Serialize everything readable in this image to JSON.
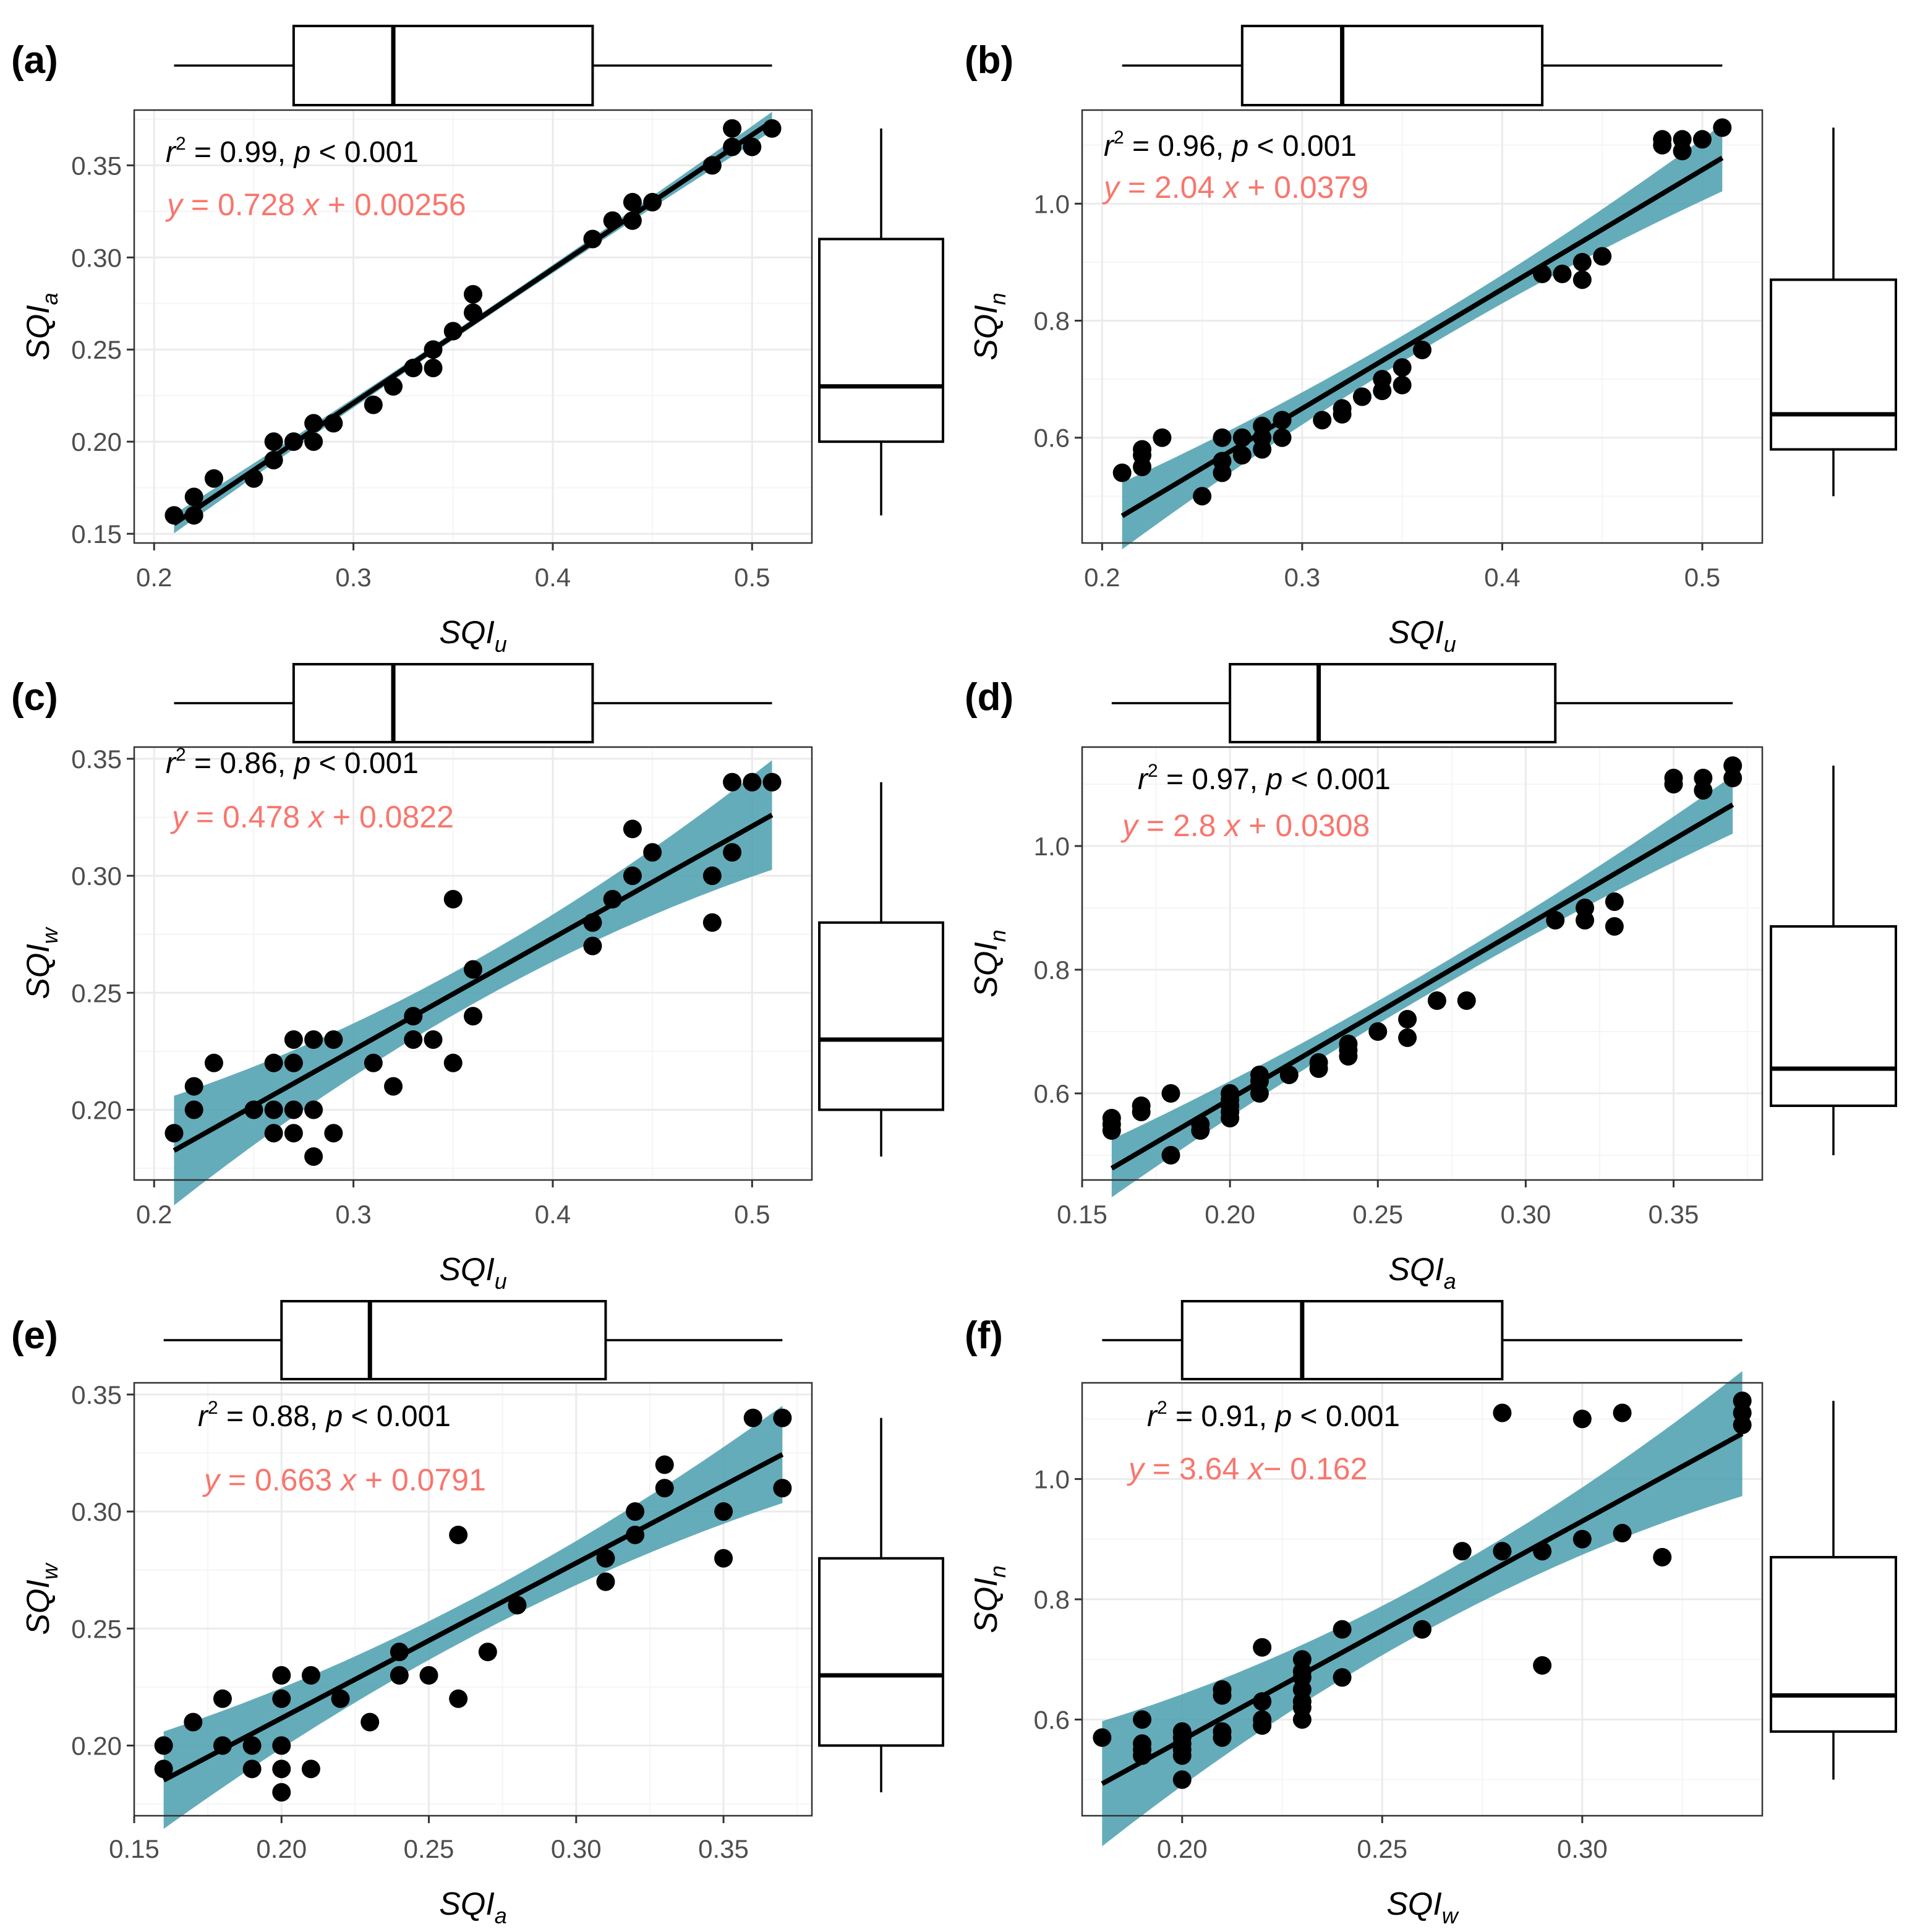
{
  "colors": {
    "points": "#000000",
    "fit_line": "#000000",
    "ci_band": "#4A9DAE",
    "equation": "#F8766D",
    "grid_major": "#EBEBEB",
    "grid_minor": "#F5F5F5",
    "tick_text": "#4D4D4D"
  },
  "chart_data": [
    {
      "type": "scatter",
      "panel_label": "(a)",
      "xlabel": {
        "main": "SQI",
        "sub": "u"
      },
      "ylabel": {
        "main": "SQI",
        "sub": "a"
      },
      "xlim": [
        0.19,
        0.53
      ],
      "ylim": [
        0.145,
        0.38
      ],
      "xticks": [
        0.2,
        0.3,
        0.4,
        0.5
      ],
      "xtick_labels": [
        "0.2",
        "0.3",
        "0.4",
        "0.5"
      ],
      "yticks": [
        0.15,
        0.2,
        0.25,
        0.3,
        0.35
      ],
      "ytick_labels": [
        "0.15",
        "0.20",
        "0.25",
        "0.30",
        "0.35"
      ],
      "stat_text": {
        "r": "r",
        "r2_rest": " = 0.99, ",
        "p": "p",
        "p_rest": " < 0.001"
      },
      "equation": {
        "y": "y",
        "mid": " = 0.728 ",
        "x": "x",
        "rest": " + 0.00256"
      },
      "fit": {
        "slope": 0.728,
        "intercept": 0.00256,
        "x_range": [
          0.21,
          0.51
        ],
        "ci": 0.002
      },
      "box_x": {
        "min": 0.21,
        "q1": 0.27,
        "median": 0.32,
        "q3": 0.42,
        "max": 0.51
      },
      "box_y": {
        "min": 0.16,
        "q1": 0.2,
        "median": 0.23,
        "q3": 0.31,
        "max": 0.37
      },
      "points": [
        [
          0.21,
          0.16
        ],
        [
          0.22,
          0.16
        ],
        [
          0.22,
          0.17
        ],
        [
          0.23,
          0.18
        ],
        [
          0.25,
          0.18
        ],
        [
          0.26,
          0.19
        ],
        [
          0.26,
          0.2
        ],
        [
          0.27,
          0.2
        ],
        [
          0.28,
          0.2
        ],
        [
          0.28,
          0.21
        ],
        [
          0.29,
          0.21
        ],
        [
          0.31,
          0.22
        ],
        [
          0.32,
          0.23
        ],
        [
          0.33,
          0.24
        ],
        [
          0.34,
          0.24
        ],
        [
          0.34,
          0.25
        ],
        [
          0.35,
          0.26
        ],
        [
          0.36,
          0.27
        ],
        [
          0.36,
          0.28
        ],
        [
          0.42,
          0.31
        ],
        [
          0.43,
          0.32
        ],
        [
          0.44,
          0.32
        ],
        [
          0.44,
          0.33
        ],
        [
          0.45,
          0.33
        ],
        [
          0.48,
          0.35
        ],
        [
          0.49,
          0.36
        ],
        [
          0.49,
          0.37
        ],
        [
          0.5,
          0.36
        ],
        [
          0.51,
          0.37
        ]
      ]
    },
    {
      "type": "scatter",
      "panel_label": "(b)",
      "xlabel": {
        "main": "SQI",
        "sub": "u"
      },
      "ylabel": {
        "main": "SQI",
        "sub": "n"
      },
      "xlim": [
        0.19,
        0.53
      ],
      "ylim": [
        0.42,
        1.16
      ],
      "xticks": [
        0.2,
        0.3,
        0.4,
        0.5
      ],
      "xtick_labels": [
        "0.2",
        "0.3",
        "0.4",
        "0.5"
      ],
      "yticks": [
        0.6,
        0.8,
        1.0
      ],
      "ytick_labels": [
        "0.6",
        "0.8",
        "1.0"
      ],
      "stat_text": {
        "r": "r",
        "r2_rest": " = 0.96, ",
        "p": "p",
        "p_rest": " < 0.001"
      },
      "equation": {
        "y": "y",
        "mid": " = 2.04 ",
        "x": "x",
        "rest": " + 0.0379"
      },
      "fit": {
        "slope": 2.04,
        "intercept": 0.0379,
        "x_range": [
          0.21,
          0.51
        ],
        "ci": 0.022
      },
      "box_x": {
        "min": 0.21,
        "q1": 0.27,
        "median": 0.32,
        "q3": 0.42,
        "max": 0.51
      },
      "box_y": {
        "min": 0.5,
        "q1": 0.58,
        "median": 0.64,
        "q3": 0.87,
        "max": 1.13
      },
      "points": [
        [
          0.21,
          0.54
        ],
        [
          0.22,
          0.55
        ],
        [
          0.22,
          0.57
        ],
        [
          0.22,
          0.58
        ],
        [
          0.23,
          0.6
        ],
        [
          0.25,
          0.5
        ],
        [
          0.26,
          0.54
        ],
        [
          0.26,
          0.56
        ],
        [
          0.26,
          0.6
        ],
        [
          0.27,
          0.57
        ],
        [
          0.27,
          0.6
        ],
        [
          0.28,
          0.58
        ],
        [
          0.28,
          0.6
        ],
        [
          0.28,
          0.62
        ],
        [
          0.29,
          0.6
        ],
        [
          0.29,
          0.63
        ],
        [
          0.31,
          0.63
        ],
        [
          0.32,
          0.64
        ],
        [
          0.32,
          0.65
        ],
        [
          0.33,
          0.67
        ],
        [
          0.34,
          0.68
        ],
        [
          0.34,
          0.7
        ],
        [
          0.35,
          0.69
        ],
        [
          0.35,
          0.72
        ],
        [
          0.36,
          0.75
        ],
        [
          0.42,
          0.88
        ],
        [
          0.43,
          0.88
        ],
        [
          0.44,
          0.87
        ],
        [
          0.44,
          0.9
        ],
        [
          0.45,
          0.91
        ],
        [
          0.48,
          1.1
        ],
        [
          0.48,
          1.11
        ],
        [
          0.49,
          1.09
        ],
        [
          0.49,
          1.11
        ],
        [
          0.5,
          1.11
        ],
        [
          0.51,
          1.13
        ]
      ]
    },
    {
      "type": "scatter",
      "panel_label": "(c)",
      "xlabel": {
        "main": "SQI",
        "sub": "u"
      },
      "ylabel": {
        "main": "SQI",
        "sub": "w"
      },
      "xlim": [
        0.19,
        0.53
      ],
      "ylim": [
        0.17,
        0.355
      ],
      "xticks": [
        0.2,
        0.3,
        0.4,
        0.5
      ],
      "xtick_labels": [
        "0.2",
        "0.3",
        "0.4",
        "0.5"
      ],
      "yticks": [
        0.2,
        0.25,
        0.3,
        0.35
      ],
      "ytick_labels": [
        "0.20",
        "0.25",
        "0.30",
        "0.35"
      ],
      "stat_text": {
        "r": "r",
        "r2_rest": " = 0.86, ",
        "p": "p",
        "p_rest": " < 0.001"
      },
      "equation": {
        "y": "y",
        "mid": " = 0.478 ",
        "x": "x",
        "rest": " + 0.0822"
      },
      "fit": {
        "slope": 0.478,
        "intercept": 0.0822,
        "x_range": [
          0.21,
          0.51
        ],
        "ci": 0.009
      },
      "box_x": {
        "min": 0.21,
        "q1": 0.27,
        "median": 0.32,
        "q3": 0.42,
        "max": 0.51
      },
      "box_y": {
        "min": 0.18,
        "q1": 0.2,
        "median": 0.23,
        "q3": 0.28,
        "max": 0.34
      },
      "points": [
        [
          0.21,
          0.19
        ],
        [
          0.22,
          0.2
        ],
        [
          0.22,
          0.21
        ],
        [
          0.23,
          0.22
        ],
        [
          0.25,
          0.2
        ],
        [
          0.26,
          0.19
        ],
        [
          0.26,
          0.2
        ],
        [
          0.26,
          0.22
        ],
        [
          0.27,
          0.19
        ],
        [
          0.27,
          0.2
        ],
        [
          0.27,
          0.22
        ],
        [
          0.27,
          0.23
        ],
        [
          0.28,
          0.18
        ],
        [
          0.28,
          0.2
        ],
        [
          0.28,
          0.23
        ],
        [
          0.29,
          0.19
        ],
        [
          0.29,
          0.23
        ],
        [
          0.31,
          0.22
        ],
        [
          0.32,
          0.21
        ],
        [
          0.33,
          0.23
        ],
        [
          0.33,
          0.24
        ],
        [
          0.34,
          0.23
        ],
        [
          0.35,
          0.22
        ],
        [
          0.35,
          0.29
        ],
        [
          0.36,
          0.24
        ],
        [
          0.36,
          0.26
        ],
        [
          0.42,
          0.27
        ],
        [
          0.42,
          0.28
        ],
        [
          0.43,
          0.29
        ],
        [
          0.44,
          0.3
        ],
        [
          0.44,
          0.32
        ],
        [
          0.45,
          0.31
        ],
        [
          0.48,
          0.28
        ],
        [
          0.48,
          0.3
        ],
        [
          0.49,
          0.31
        ],
        [
          0.49,
          0.34
        ],
        [
          0.5,
          0.34
        ],
        [
          0.51,
          0.34
        ]
      ]
    },
    {
      "type": "scatter",
      "panel_label": "(d)",
      "xlabel": {
        "main": "SQI",
        "sub": "a"
      },
      "ylabel": {
        "main": "SQI",
        "sub": "n"
      },
      "xlim": [
        0.15,
        0.38
      ],
      "ylim": [
        0.46,
        1.16
      ],
      "xticks": [
        0.15,
        0.2,
        0.25,
        0.3,
        0.35
      ],
      "xtick_labels": [
        "0.15",
        "0.20",
        "0.25",
        "0.30",
        "0.35"
      ],
      "yticks": [
        0.6,
        0.8,
        1.0
      ],
      "ytick_labels": [
        "0.6",
        "0.8",
        "1.0"
      ],
      "stat_text": {
        "r": "r",
        "r2_rest": " = 0.97, ",
        "p": "p",
        "p_rest": " < 0.001"
      },
      "equation": {
        "y": "y",
        "mid": " = 2.8 ",
        "x": "x",
        "rest": " + 0.0308"
      },
      "fit": {
        "slope": 2.8,
        "intercept": 0.0308,
        "x_range": [
          0.16,
          0.37
        ],
        "ci": 0.018
      },
      "box_x": {
        "min": 0.16,
        "q1": 0.2,
        "median": 0.23,
        "q3": 0.31,
        "max": 0.37
      },
      "box_y": {
        "min": 0.5,
        "q1": 0.58,
        "median": 0.64,
        "q3": 0.87,
        "max": 1.13
      },
      "points": [
        [
          0.16,
          0.54
        ],
        [
          0.16,
          0.55
        ],
        [
          0.16,
          0.56
        ],
        [
          0.17,
          0.57
        ],
        [
          0.17,
          0.58
        ],
        [
          0.18,
          0.5
        ],
        [
          0.18,
          0.6
        ],
        [
          0.19,
          0.54
        ],
        [
          0.19,
          0.55
        ],
        [
          0.2,
          0.56
        ],
        [
          0.2,
          0.57
        ],
        [
          0.2,
          0.58
        ],
        [
          0.2,
          0.59
        ],
        [
          0.2,
          0.6
        ],
        [
          0.21,
          0.6
        ],
        [
          0.21,
          0.62
        ],
        [
          0.21,
          0.63
        ],
        [
          0.22,
          0.63
        ],
        [
          0.23,
          0.64
        ],
        [
          0.23,
          0.65
        ],
        [
          0.24,
          0.66
        ],
        [
          0.24,
          0.67
        ],
        [
          0.24,
          0.68
        ],
        [
          0.25,
          0.7
        ],
        [
          0.26,
          0.69
        ],
        [
          0.26,
          0.72
        ],
        [
          0.27,
          0.75
        ],
        [
          0.28,
          0.75
        ],
        [
          0.31,
          0.88
        ],
        [
          0.32,
          0.88
        ],
        [
          0.32,
          0.9
        ],
        [
          0.33,
          0.87
        ],
        [
          0.33,
          0.91
        ],
        [
          0.35,
          1.1
        ],
        [
          0.35,
          1.11
        ],
        [
          0.36,
          1.09
        ],
        [
          0.36,
          1.11
        ],
        [
          0.37,
          1.11
        ],
        [
          0.37,
          1.13
        ]
      ]
    },
    {
      "type": "scatter",
      "panel_label": "(e)",
      "xlabel": {
        "main": "SQI",
        "sub": "a"
      },
      "ylabel": {
        "main": "SQI",
        "sub": "w"
      },
      "xlim": [
        0.15,
        0.38
      ],
      "ylim": [
        0.17,
        0.355
      ],
      "xticks": [
        0.15,
        0.2,
        0.25,
        0.3,
        0.35
      ],
      "xtick_labels": [
        "0.15",
        "0.20",
        "0.25",
        "0.30",
        "0.35"
      ],
      "yticks": [
        0.2,
        0.25,
        0.3,
        0.35
      ],
      "ytick_labels": [
        "0.20",
        "0.25",
        "0.30",
        "0.35"
      ],
      "stat_text": {
        "r": "r",
        "r2_rest": " = 0.88, ",
        "p": "p",
        "p_rest": " < 0.001"
      },
      "equation": {
        "y": "y",
        "mid": " = 0.663 ",
        "x": "x",
        "rest": " + 0.0791"
      },
      "fit": {
        "slope": 0.663,
        "intercept": 0.0791,
        "x_range": [
          0.16,
          0.37
        ],
        "ci": 0.008
      },
      "box_x": {
        "min": 0.16,
        "q1": 0.2,
        "median": 0.23,
        "q3": 0.31,
        "max": 0.37
      },
      "box_y": {
        "min": 0.18,
        "q1": 0.2,
        "median": 0.23,
        "q3": 0.28,
        "max": 0.34
      },
      "points": [
        [
          0.16,
          0.19
        ],
        [
          0.16,
          0.2
        ],
        [
          0.17,
          0.21
        ],
        [
          0.18,
          0.2
        ],
        [
          0.18,
          0.22
        ],
        [
          0.19,
          0.19
        ],
        [
          0.19,
          0.2
        ],
        [
          0.2,
          0.18
        ],
        [
          0.2,
          0.19
        ],
        [
          0.2,
          0.2
        ],
        [
          0.2,
          0.22
        ],
        [
          0.2,
          0.23
        ],
        [
          0.21,
          0.19
        ],
        [
          0.21,
          0.23
        ],
        [
          0.22,
          0.22
        ],
        [
          0.23,
          0.21
        ],
        [
          0.24,
          0.23
        ],
        [
          0.24,
          0.24
        ],
        [
          0.25,
          0.23
        ],
        [
          0.26,
          0.22
        ],
        [
          0.26,
          0.29
        ],
        [
          0.27,
          0.24
        ],
        [
          0.28,
          0.26
        ],
        [
          0.31,
          0.27
        ],
        [
          0.31,
          0.28
        ],
        [
          0.32,
          0.29
        ],
        [
          0.32,
          0.3
        ],
        [
          0.33,
          0.31
        ],
        [
          0.33,
          0.32
        ],
        [
          0.35,
          0.28
        ],
        [
          0.35,
          0.3
        ],
        [
          0.36,
          0.34
        ],
        [
          0.37,
          0.31
        ],
        [
          0.37,
          0.34
        ]
      ]
    },
    {
      "type": "scatter",
      "panel_label": "(f)",
      "xlabel": {
        "main": "SQI",
        "sub": "w"
      },
      "ylabel": {
        "main": "SQI",
        "sub": "n"
      },
      "xlim": [
        0.175,
        0.345
      ],
      "ylim": [
        0.44,
        1.16
      ],
      "xticks": [
        0.2,
        0.25,
        0.3
      ],
      "xtick_labels": [
        "0.20",
        "0.25",
        "0.30"
      ],
      "yticks": [
        0.6,
        0.8,
        1.0
      ],
      "ytick_labels": [
        "0.6",
        "0.8",
        "1.0"
      ],
      "stat_text": {
        "r": "r",
        "r2_rest": " = 0.91, ",
        "p": "p",
        "p_rest": " < 0.001"
      },
      "equation": {
        "y": "y",
        "mid": " = 3.64 ",
        "x": "x",
        "rest": "− 0.162"
      },
      "fit": {
        "slope": 3.64,
        "intercept": -0.162,
        "x_range": [
          0.18,
          0.34
        ],
        "ci": 0.04
      },
      "box_x": {
        "min": 0.18,
        "q1": 0.2,
        "median": 0.23,
        "q3": 0.28,
        "max": 0.34
      },
      "box_y": {
        "min": 0.5,
        "q1": 0.58,
        "median": 0.64,
        "q3": 0.87,
        "max": 1.13
      },
      "points": [
        [
          0.18,
          0.57
        ],
        [
          0.19,
          0.54
        ],
        [
          0.19,
          0.55
        ],
        [
          0.19,
          0.56
        ],
        [
          0.19,
          0.6
        ],
        [
          0.2,
          0.5
        ],
        [
          0.2,
          0.54
        ],
        [
          0.2,
          0.55
        ],
        [
          0.2,
          0.56
        ],
        [
          0.2,
          0.57
        ],
        [
          0.2,
          0.58
        ],
        [
          0.21,
          0.57
        ],
        [
          0.21,
          0.58
        ],
        [
          0.21,
          0.64
        ],
        [
          0.21,
          0.65
        ],
        [
          0.22,
          0.59
        ],
        [
          0.22,
          0.6
        ],
        [
          0.22,
          0.63
        ],
        [
          0.22,
          0.72
        ],
        [
          0.23,
          0.6
        ],
        [
          0.23,
          0.62
        ],
        [
          0.23,
          0.63
        ],
        [
          0.23,
          0.65
        ],
        [
          0.23,
          0.67
        ],
        [
          0.23,
          0.68
        ],
        [
          0.23,
          0.7
        ],
        [
          0.24,
          0.67
        ],
        [
          0.24,
          0.75
        ],
        [
          0.26,
          0.75
        ],
        [
          0.27,
          0.88
        ],
        [
          0.28,
          0.88
        ],
        [
          0.28,
          1.11
        ],
        [
          0.29,
          0.69
        ],
        [
          0.29,
          0.88
        ],
        [
          0.3,
          0.9
        ],
        [
          0.3,
          1.1
        ],
        [
          0.31,
          0.91
        ],
        [
          0.31,
          1.11
        ],
        [
          0.32,
          0.87
        ],
        [
          0.34,
          1.09
        ],
        [
          0.34,
          1.11
        ],
        [
          0.34,
          1.13
        ]
      ]
    }
  ]
}
